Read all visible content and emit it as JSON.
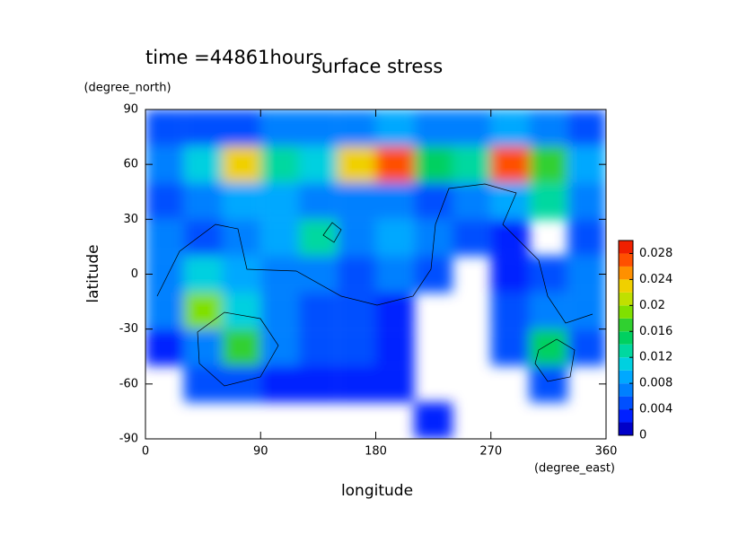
{
  "chart_data": {
    "type": "contour",
    "title": "surface stress",
    "subtitle": "time =44861hours",
    "x_label": "longitude",
    "y_label": "latitude",
    "x_unit": "(degree_east)",
    "y_unit": "(degree_north)",
    "xlim": [
      0,
      360
    ],
    "xticks": [
      0,
      90,
      180,
      270,
      360
    ],
    "ylim": [
      -90,
      90
    ],
    "yticks": [
      -90,
      -60,
      -30,
      0,
      30,
      60,
      90
    ],
    "x": [
      15,
      45,
      75,
      105,
      135,
      165,
      195,
      225,
      255,
      285,
      315,
      345
    ],
    "y": [
      80,
      60,
      40,
      20,
      0,
      -20,
      -40,
      -60,
      -80
    ],
    "z": [
      [
        0.004,
        0.004,
        0.004,
        0.006,
        0.006,
        0.006,
        0.008,
        0.006,
        0.006,
        0.008,
        0.006,
        0.004
      ],
      [
        0.006,
        0.01,
        0.022,
        0.012,
        0.01,
        0.022,
        0.026,
        0.014,
        0.012,
        0.026,
        0.016,
        0.008
      ],
      [
        0.004,
        0.006,
        0.008,
        0.008,
        0.006,
        0.006,
        0.006,
        0.004,
        0.006,
        0.008,
        0.012,
        0.006
      ],
      [
        0.006,
        0.004,
        0.006,
        0.008,
        0.012,
        0.006,
        0.008,
        0.006,
        0.004,
        0.002,
        null,
        0.004
      ],
      [
        0.006,
        0.01,
        0.008,
        0.006,
        0.006,
        0.004,
        0.006,
        0.004,
        null,
        0.002,
        0.004,
        0.006
      ],
      [
        0.006,
        0.018,
        0.01,
        0.006,
        0.004,
        0.004,
        0.002,
        null,
        null,
        0.004,
        0.006,
        0.006
      ],
      [
        0.002,
        0.006,
        0.016,
        0.006,
        0.004,
        0.004,
        0.002,
        null,
        null,
        0.004,
        0.014,
        0.004
      ],
      [
        null,
        0.004,
        0.004,
        0.002,
        0.002,
        0.002,
        0.002,
        null,
        null,
        null,
        0.004,
        null
      ],
      [
        null,
        null,
        null,
        null,
        null,
        null,
        null,
        0.002,
        null,
        null,
        null,
        null
      ]
    ],
    "colorbar": {
      "lim": [
        0,
        0.03
      ],
      "levels": [
        0,
        0.002,
        0.004,
        0.006,
        0.008,
        0.01,
        0.012,
        0.014,
        0.016,
        0.018,
        0.02,
        0.022,
        0.024,
        0.026,
        0.028,
        0.03
      ],
      "colors": [
        "#0000c8",
        "#0020ff",
        "#0050ff",
        "#0080ff",
        "#00a8ff",
        "#00d0e0",
        "#00d8a0",
        "#00d060",
        "#30d030",
        "#80e000",
        "#c0e000",
        "#f0d000",
        "#ff9000",
        "#ff5000",
        "#f02000"
      ],
      "ticks": [
        0,
        0.004,
        0.008,
        0.012,
        0.016,
        0.02,
        0.024,
        0.028
      ]
    }
  }
}
